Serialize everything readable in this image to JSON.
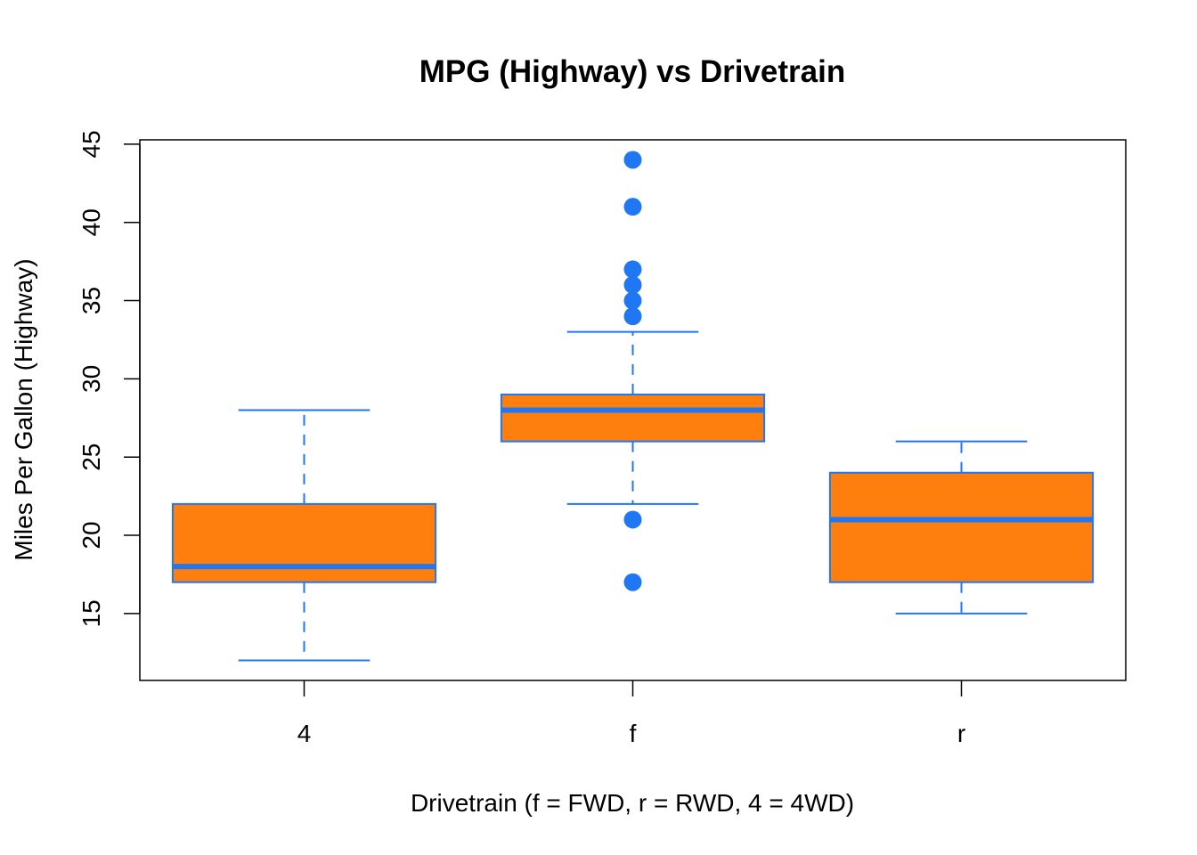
{
  "chart_data": {
    "type": "boxplot",
    "title": "MPG (Highway) vs Drivetrain",
    "xlabel": "Drivetrain (f = FWD, r = RWD, 4 = 4WD)",
    "ylabel": "Miles Per Gallon (Highway)",
    "ylim": [
      10.72,
      45.28
    ],
    "yticks": [
      15,
      20,
      25,
      30,
      35,
      40,
      45
    ],
    "grid": false,
    "colors": {
      "box_fill": "#ff7f0e",
      "box_stroke": "#1f77f4",
      "axis": "#000000"
    },
    "categories": [
      "4",
      "f",
      "r"
    ],
    "boxes": [
      {
        "category": "4",
        "whisker_low": 12,
        "q1": 17,
        "median": 18,
        "q3": 22,
        "whisker_high": 28,
        "outliers": []
      },
      {
        "category": "f",
        "whisker_low": 22,
        "q1": 26,
        "median": 28,
        "q3": 29,
        "whisker_high": 33,
        "outliers": [
          44,
          41,
          37,
          36,
          35,
          34,
          21,
          17
        ]
      },
      {
        "category": "r",
        "whisker_low": 15,
        "q1": 17,
        "median": 21,
        "q3": 24,
        "whisker_high": 26,
        "outliers": []
      }
    ]
  }
}
